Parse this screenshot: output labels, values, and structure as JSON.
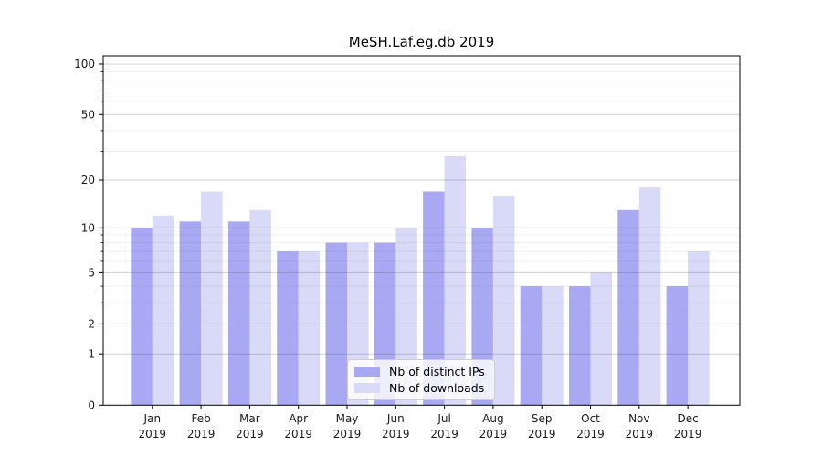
{
  "chart_data": {
    "type": "bar",
    "title": "MeSH.Laf.eg.db 2019",
    "months": [
      "Jan",
      "Feb",
      "Mar",
      "Apr",
      "May",
      "Jun",
      "Jul",
      "Aug",
      "Sep",
      "Oct",
      "Nov",
      "Dec"
    ],
    "year": "2019",
    "series": [
      {
        "name": "Nb of distinct IPs",
        "color": "#a9a9f3",
        "values": [
          10,
          11,
          11,
          7,
          8,
          8,
          17,
          10,
          4,
          4,
          13,
          4
        ]
      },
      {
        "name": "Nb of downloads",
        "color": "#d9d9f8",
        "values": [
          12,
          17,
          13,
          7,
          8,
          10,
          28,
          16,
          4,
          5,
          18,
          7
        ]
      }
    ],
    "xlabel": "",
    "ylabel": "",
    "y_scale": "log1p",
    "y_ticks": [
      100,
      50,
      20,
      10,
      5,
      2,
      1,
      0
    ],
    "y_minor_ticks": [
      3,
      4,
      6,
      7,
      8,
      9,
      30,
      40,
      60,
      70,
      80,
      90
    ],
    "ylim": [
      0,
      113
    ],
    "grid": true,
    "legend_position": "lower center"
  },
  "colors": {
    "axis": "#000000",
    "tick_label": "#1a1a1a",
    "major_grid": "rgba(60,60,60,0.24)",
    "minor_grid": "rgba(60,60,60,0.08)"
  }
}
